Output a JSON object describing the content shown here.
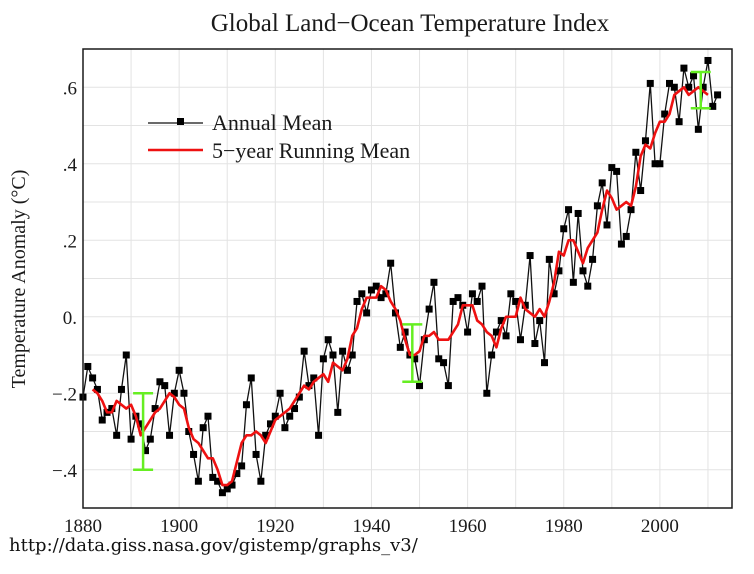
{
  "chart_data": {
    "type": "line",
    "title": "Global Land−Ocean Temperature Index",
    "xlabel": "",
    "ylabel": "Temperature Anomaly (°C)",
    "xlim": [
      1880,
      2015
    ],
    "ylim": [
      -0.5,
      0.7
    ],
    "grid": true,
    "legend_position": "top-left",
    "x_ticks": [
      1880,
      1900,
      1920,
      1940,
      1960,
      1980,
      2000
    ],
    "x_tick_labels": [
      "1880",
      "1900",
      "1920",
      "1940",
      "1960",
      "1980",
      "2000"
    ],
    "y_ticks": [
      -0.4,
      -0.2,
      0.0,
      0.2,
      0.4,
      0.6
    ],
    "y_tick_labels": [
      "−.4",
      "−.2",
      "0.",
      ".2",
      ".4",
      ".6"
    ],
    "series": [
      {
        "name": "Annual Mean",
        "color": "#000000",
        "marker": "square",
        "x_start": 1880,
        "values": [
          -0.21,
          -0.13,
          -0.16,
          -0.19,
          -0.27,
          -0.25,
          -0.24,
          -0.31,
          -0.19,
          -0.1,
          -0.32,
          -0.26,
          -0.28,
          -0.35,
          -0.32,
          -0.24,
          -0.17,
          -0.18,
          -0.31,
          -0.2,
          -0.14,
          -0.2,
          -0.3,
          -0.36,
          -0.43,
          -0.29,
          -0.26,
          -0.42,
          -0.43,
          -0.46,
          -0.45,
          -0.44,
          -0.41,
          -0.39,
          -0.23,
          -0.16,
          -0.36,
          -0.43,
          -0.31,
          -0.28,
          -0.26,
          -0.2,
          -0.29,
          -0.26,
          -0.24,
          -0.21,
          -0.09,
          -0.18,
          -0.16,
          -0.31,
          -0.11,
          -0.06,
          -0.1,
          -0.25,
          -0.09,
          -0.14,
          -0.1,
          0.04,
          0.06,
          0.01,
          0.07,
          0.08,
          0.05,
          0.06,
          0.14,
          0.01,
          -0.08,
          -0.04,
          -0.1,
          -0.11,
          -0.18,
          -0.06,
          0.02,
          0.09,
          -0.11,
          -0.12,
          -0.18,
          0.04,
          0.05,
          0.03,
          -0.04,
          0.06,
          0.04,
          0.08,
          -0.2,
          -0.1,
          -0.04,
          -0.01,
          -0.05,
          0.06,
          0.04,
          -0.06,
          0.03,
          0.16,
          -0.07,
          -0.01,
          -0.12,
          0.15,
          0.06,
          0.12,
          0.23,
          0.28,
          0.09,
          0.27,
          0.12,
          0.08,
          0.15,
          0.29,
          0.35,
          0.24,
          0.39,
          0.38,
          0.19,
          0.21,
          0.28,
          0.43,
          0.33,
          0.46,
          0.61,
          0.4,
          0.4,
          0.53,
          0.61,
          0.6,
          0.51,
          0.65,
          0.6,
          0.63,
          0.49,
          0.6,
          0.67,
          0.55,
          0.58
        ]
      },
      {
        "name": "5−year Running Mean",
        "color": "#ee1111",
        "marker": "none",
        "x_start": 1882,
        "values": [
          -0.19,
          -0.2,
          -0.22,
          -0.25,
          -0.25,
          -0.22,
          -0.23,
          -0.24,
          -0.23,
          -0.26,
          -0.31,
          -0.29,
          -0.27,
          -0.25,
          -0.24,
          -0.22,
          -0.2,
          -0.21,
          -0.23,
          -0.24,
          -0.29,
          -0.32,
          -0.33,
          -0.35,
          -0.37,
          -0.37,
          -0.4,
          -0.44,
          -0.44,
          -0.43,
          -0.38,
          -0.33,
          -0.31,
          -0.31,
          -0.3,
          -0.31,
          -0.33,
          -0.3,
          -0.27,
          -0.26,
          -0.25,
          -0.24,
          -0.22,
          -0.2,
          -0.18,
          -0.19,
          -0.17,
          -0.16,
          -0.15,
          -0.17,
          -0.12,
          -0.13,
          -0.14,
          -0.11,
          -0.05,
          -0.03,
          0.02,
          0.05,
          0.05,
          0.05,
          0.08,
          0.07,
          0.04,
          0.02,
          -0.01,
          -0.06,
          -0.1,
          -0.1,
          -0.09,
          -0.05,
          -0.05,
          -0.04,
          -0.06,
          -0.06,
          -0.06,
          -0.04,
          -0.02,
          0.03,
          0.03,
          0.03,
          -0.01,
          -0.02,
          -0.04,
          -0.05,
          -0.08,
          -0.03,
          0.0,
          0.0,
          0.0,
          0.05,
          0.02,
          0.01,
          0.0,
          0.02,
          0.0,
          0.04,
          0.09,
          0.17,
          0.16,
          0.2,
          0.2,
          0.17,
          0.14,
          0.18,
          0.2,
          0.22,
          0.28,
          0.33,
          0.31,
          0.28,
          0.29,
          0.3,
          0.29,
          0.34,
          0.42,
          0.45,
          0.44,
          0.48,
          0.51,
          0.51,
          0.53,
          0.58,
          0.59,
          0.6,
          0.58,
          0.59,
          0.6,
          0.59,
          0.58
        ]
      }
    ],
    "error_bars": [
      {
        "x": 1892.5,
        "low": -0.4,
        "high": -0.2,
        "color": "#66ee22"
      },
      {
        "x": 1948.5,
        "low": -0.17,
        "high": -0.02,
        "color": "#66ee22"
      },
      {
        "x": 2008.5,
        "low": 0.545,
        "high": 0.64,
        "color": "#66ee22"
      }
    ],
    "legend": [
      {
        "label": "Annual Mean",
        "style": "black-line-square-marker"
      },
      {
        "label": "5−year Running Mean",
        "style": "red-line"
      }
    ]
  },
  "source_text": "http://data.giss.nasa.gov/gistemp/graphs_v3/"
}
